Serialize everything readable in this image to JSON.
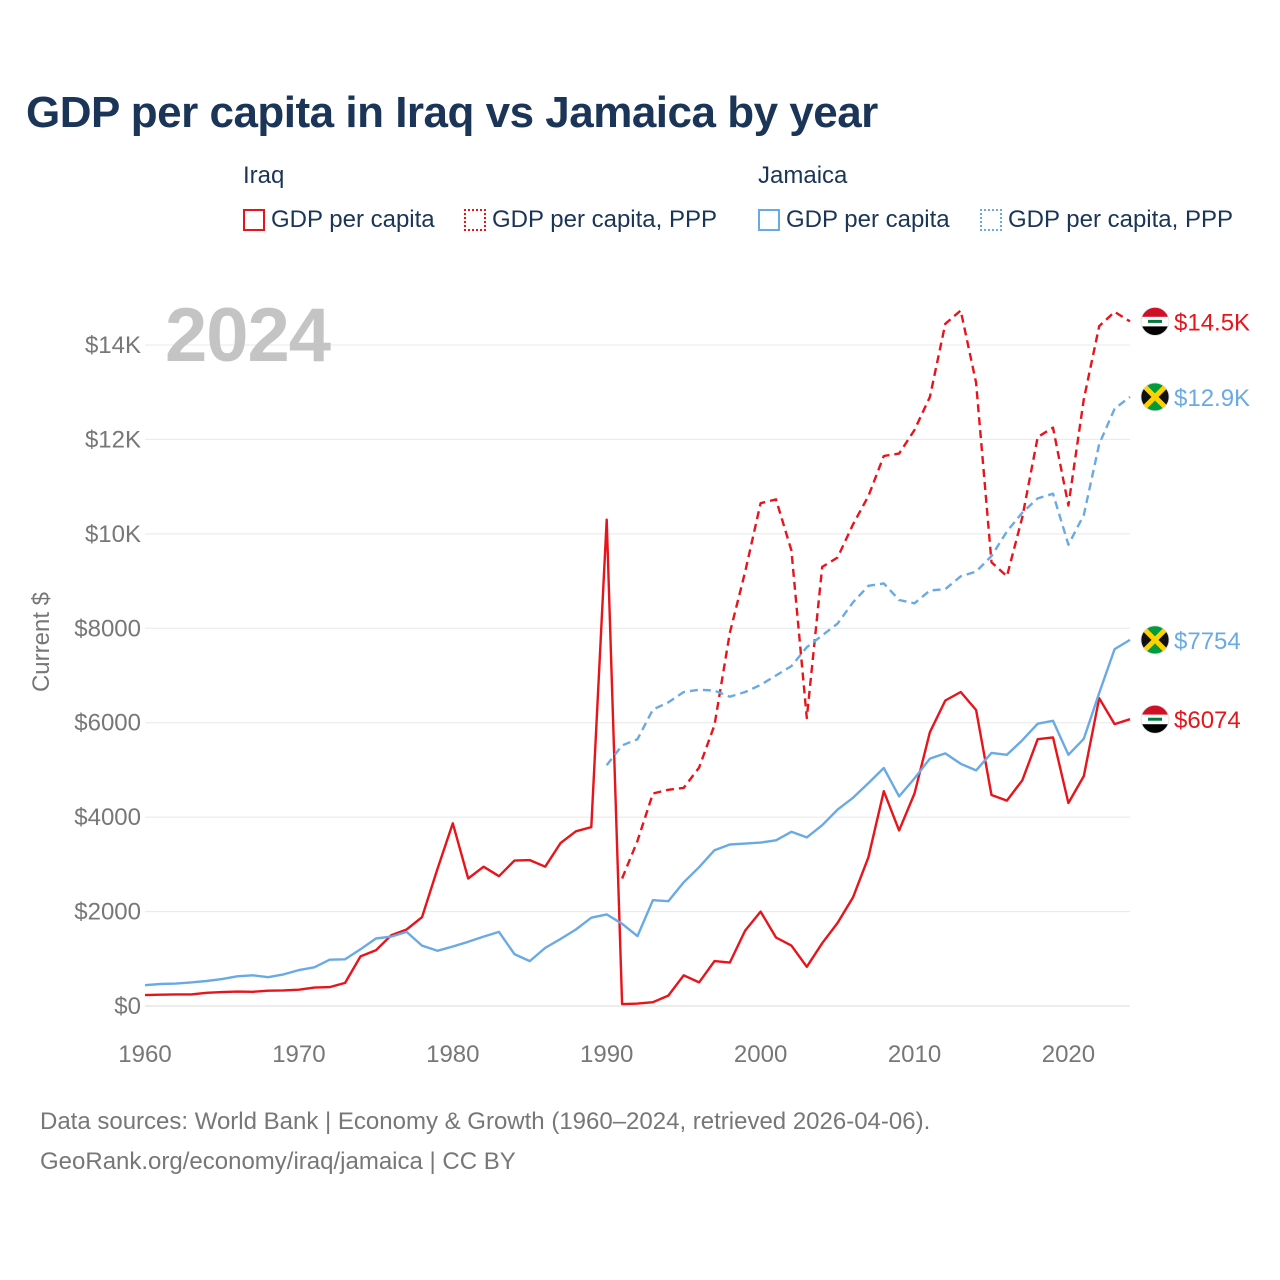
{
  "chart_data": {
    "type": "line",
    "title": "GDP per capita in Iraq vs Jamaica by year",
    "current_year": "2024",
    "ylabel": "Current $",
    "xlabel": "",
    "ylim": [
      0,
      15000
    ],
    "xlim": [
      1960,
      2024
    ],
    "x_ticks": [
      {
        "value": 1960,
        "label": "1960"
      },
      {
        "value": 1970,
        "label": "1970"
      },
      {
        "value": 1980,
        "label": "1980"
      },
      {
        "value": 1990,
        "label": "1990"
      },
      {
        "value": 2000,
        "label": "2000"
      },
      {
        "value": 2010,
        "label": "2010"
      },
      {
        "value": 2020,
        "label": "2020"
      }
    ],
    "y_ticks": [
      {
        "value": 0,
        "label": "$0"
      },
      {
        "value": 2000,
        "label": "$2000"
      },
      {
        "value": 4000,
        "label": "$4000"
      },
      {
        "value": 6000,
        "label": "$6000"
      },
      {
        "value": 8000,
        "label": "$8000"
      },
      {
        "value": 10000,
        "label": "$10K"
      },
      {
        "value": 12000,
        "label": "$12K"
      },
      {
        "value": 14000,
        "label": "$14K"
      }
    ],
    "legend": {
      "groups": [
        {
          "name": "Iraq",
          "items": [
            {
              "label": "GDP per capita",
              "style": "solid",
              "color": "#e8141c"
            },
            {
              "label": "GDP per capita, PPP",
              "style": "dotted",
              "color": "#e8141c"
            }
          ]
        },
        {
          "name": "Jamaica",
          "items": [
            {
              "label": "GDP per capita",
              "style": "solid",
              "color": "#6aaae4"
            },
            {
              "label": "GDP per capita, PPP",
              "style": "dotted",
              "color": "#6aaae4"
            }
          ]
        }
      ]
    },
    "series": [
      {
        "name": "Iraq GDP per capita",
        "country": "Iraq",
        "flag": "iraq",
        "style": "solid",
        "color": "#e8141c",
        "end_label": "$6074",
        "points": [
          [
            1960,
            230
          ],
          [
            1961,
            240
          ],
          [
            1962,
            245
          ],
          [
            1963,
            245
          ],
          [
            1964,
            280
          ],
          [
            1965,
            295
          ],
          [
            1966,
            305
          ],
          [
            1967,
            300
          ],
          [
            1968,
            325
          ],
          [
            1969,
            330
          ],
          [
            1970,
            345
          ],
          [
            1971,
            390
          ],
          [
            1972,
            400
          ],
          [
            1973,
            490
          ],
          [
            1974,
            1050
          ],
          [
            1975,
            1180
          ],
          [
            1976,
            1500
          ],
          [
            1977,
            1620
          ],
          [
            1978,
            1880
          ],
          [
            1979,
            2900
          ],
          [
            1980,
            3870
          ],
          [
            1981,
            2700
          ],
          [
            1982,
            2950
          ],
          [
            1983,
            2750
          ],
          [
            1984,
            3080
          ],
          [
            1985,
            3090
          ],
          [
            1986,
            2950
          ],
          [
            1987,
            3450
          ],
          [
            1988,
            3700
          ],
          [
            1989,
            3790
          ],
          [
            1990,
            10300
          ],
          [
            1991,
            40
          ],
          [
            1992,
            50
          ],
          [
            1993,
            80
          ],
          [
            1994,
            220
          ],
          [
            1995,
            650
          ],
          [
            1996,
            500
          ],
          [
            1997,
            950
          ],
          [
            1998,
            920
          ],
          [
            1999,
            1600
          ],
          [
            2000,
            2000
          ],
          [
            2001,
            1450
          ],
          [
            2002,
            1280
          ],
          [
            2003,
            830
          ],
          [
            2004,
            1330
          ],
          [
            2005,
            1760
          ],
          [
            2006,
            2300
          ],
          [
            2007,
            3150
          ],
          [
            2008,
            4550
          ],
          [
            2009,
            3720
          ],
          [
            2010,
            4500
          ],
          [
            2011,
            5800
          ],
          [
            2012,
            6470
          ],
          [
            2013,
            6650
          ],
          [
            2014,
            6270
          ],
          [
            2015,
            4470
          ],
          [
            2016,
            4350
          ],
          [
            2017,
            4780
          ],
          [
            2018,
            5650
          ],
          [
            2019,
            5690
          ],
          [
            2020,
            4300
          ],
          [
            2021,
            4870
          ],
          [
            2022,
            6520
          ],
          [
            2023,
            5970
          ],
          [
            2024,
            6074
          ]
        ]
      },
      {
        "name": "Iraq GDP per capita, PPP",
        "country": "Iraq",
        "flag": "iraq",
        "style": "dashed",
        "color": "#e8141c",
        "end_label": "$14.5K",
        "points": [
          [
            1991,
            2700
          ],
          [
            1992,
            3500
          ],
          [
            1993,
            4500
          ],
          [
            1994,
            4580
          ],
          [
            1995,
            4620
          ],
          [
            1996,
            5050
          ],
          [
            1997,
            5950
          ],
          [
            1998,
            7900
          ],
          [
            1999,
            9200
          ],
          [
            2000,
            10650
          ],
          [
            2001,
            10730
          ],
          [
            2002,
            9650
          ],
          [
            2003,
            6100
          ],
          [
            2004,
            9300
          ],
          [
            2005,
            9500
          ],
          [
            2006,
            10200
          ],
          [
            2007,
            10800
          ],
          [
            2008,
            11650
          ],
          [
            2009,
            11700
          ],
          [
            2010,
            12200
          ],
          [
            2011,
            12900
          ],
          [
            2012,
            14450
          ],
          [
            2013,
            14730
          ],
          [
            2014,
            13200
          ],
          [
            2015,
            9400
          ],
          [
            2016,
            9100
          ],
          [
            2017,
            10350
          ],
          [
            2018,
            12050
          ],
          [
            2019,
            12250
          ],
          [
            2020,
            10600
          ],
          [
            2021,
            12850
          ],
          [
            2022,
            14400
          ],
          [
            2023,
            14700
          ],
          [
            2024,
            14500
          ]
        ]
      },
      {
        "name": "Jamaica GDP per capita",
        "country": "Jamaica",
        "flag": "jamaica",
        "style": "solid",
        "color": "#6aaae4",
        "end_label": "$7754",
        "points": [
          [
            1960,
            440
          ],
          [
            1961,
            465
          ],
          [
            1962,
            475
          ],
          [
            1963,
            500
          ],
          [
            1964,
            530
          ],
          [
            1965,
            570
          ],
          [
            1966,
            630
          ],
          [
            1967,
            650
          ],
          [
            1968,
            610
          ],
          [
            1969,
            670
          ],
          [
            1970,
            760
          ],
          [
            1971,
            820
          ],
          [
            1972,
            980
          ],
          [
            1973,
            990
          ],
          [
            1974,
            1200
          ],
          [
            1975,
            1430
          ],
          [
            1976,
            1470
          ],
          [
            1977,
            1570
          ],
          [
            1978,
            1280
          ],
          [
            1979,
            1170
          ],
          [
            1980,
            1260
          ],
          [
            1981,
            1360
          ],
          [
            1982,
            1470
          ],
          [
            1983,
            1570
          ],
          [
            1984,
            1100
          ],
          [
            1985,
            950
          ],
          [
            1986,
            1230
          ],
          [
            1987,
            1420
          ],
          [
            1988,
            1620
          ],
          [
            1989,
            1870
          ],
          [
            1990,
            1940
          ],
          [
            1991,
            1740
          ],
          [
            1992,
            1480
          ],
          [
            1993,
            2240
          ],
          [
            1994,
            2220
          ],
          [
            1995,
            2620
          ],
          [
            1996,
            2940
          ],
          [
            1997,
            3300
          ],
          [
            1998,
            3420
          ],
          [
            1999,
            3440
          ],
          [
            2000,
            3460
          ],
          [
            2001,
            3510
          ],
          [
            2002,
            3690
          ],
          [
            2003,
            3570
          ],
          [
            2004,
            3830
          ],
          [
            2005,
            4160
          ],
          [
            2006,
            4410
          ],
          [
            2007,
            4720
          ],
          [
            2008,
            5040
          ],
          [
            2009,
            4440
          ],
          [
            2010,
            4820
          ],
          [
            2011,
            5240
          ],
          [
            2012,
            5350
          ],
          [
            2013,
            5130
          ],
          [
            2014,
            4990
          ],
          [
            2015,
            5360
          ],
          [
            2016,
            5320
          ],
          [
            2017,
            5630
          ],
          [
            2018,
            5980
          ],
          [
            2019,
            6040
          ],
          [
            2020,
            5320
          ],
          [
            2021,
            5660
          ],
          [
            2022,
            6630
          ],
          [
            2023,
            7560
          ],
          [
            2024,
            7754
          ]
        ]
      },
      {
        "name": "Jamaica GDP per capita, PPP",
        "country": "Jamaica",
        "flag": "jamaica",
        "style": "dashed",
        "color": "#6aaae4",
        "end_label": "$12.9K",
        "points": [
          [
            1990,
            5100
          ],
          [
            1991,
            5520
          ],
          [
            1992,
            5650
          ],
          [
            1993,
            6280
          ],
          [
            1994,
            6430
          ],
          [
            1995,
            6650
          ],
          [
            1996,
            6700
          ],
          [
            1997,
            6680
          ],
          [
            1998,
            6550
          ],
          [
            1999,
            6650
          ],
          [
            2000,
            6800
          ],
          [
            2001,
            7000
          ],
          [
            2002,
            7200
          ],
          [
            2003,
            7600
          ],
          [
            2004,
            7850
          ],
          [
            2005,
            8100
          ],
          [
            2006,
            8550
          ],
          [
            2007,
            8900
          ],
          [
            2008,
            8950
          ],
          [
            2009,
            8600
          ],
          [
            2010,
            8530
          ],
          [
            2011,
            8800
          ],
          [
            2012,
            8830
          ],
          [
            2013,
            9100
          ],
          [
            2014,
            9200
          ],
          [
            2015,
            9530
          ],
          [
            2016,
            10050
          ],
          [
            2017,
            10450
          ],
          [
            2018,
            10750
          ],
          [
            2019,
            10850
          ],
          [
            2020,
            9770
          ],
          [
            2021,
            10400
          ],
          [
            2022,
            11900
          ],
          [
            2023,
            12650
          ],
          [
            2024,
            12900
          ]
        ]
      }
    ]
  },
  "source": {
    "line1": "Data sources: World Bank | Economy & Growth (1960–2024, retrieved 2026-04-06).",
    "line2": "GeoRank.org/economy/iraq/jamaica | CC BY"
  },
  "colors": {
    "iraq": "#e8141c",
    "jamaica": "#6aaae4",
    "title": "#1a3557",
    "axis_text": "#777777",
    "grid": "#e8e8e8"
  }
}
